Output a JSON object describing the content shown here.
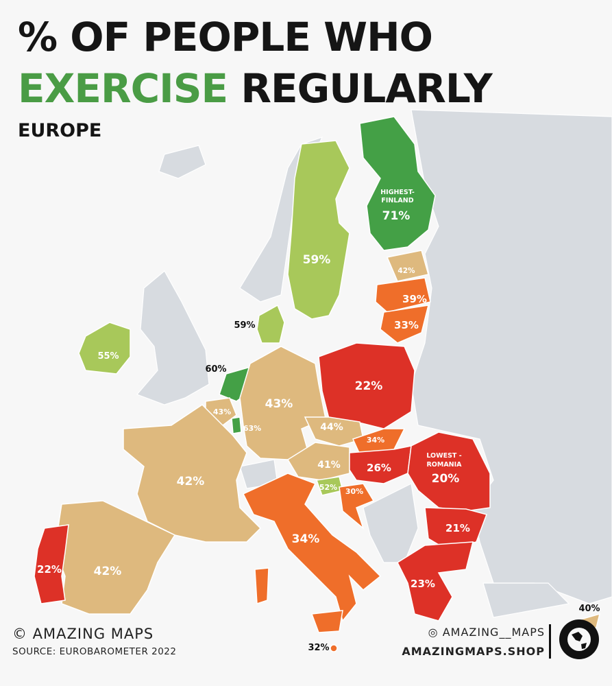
{
  "header": {
    "title_line1": "% OF PEOPLE WHO",
    "title_highlight": "EXERCISE",
    "title_rest": "REGULARLY",
    "subtitle": "EUROPE"
  },
  "labels": {
    "finland_note_1": "HIGHEST-",
    "finland_note_2": "FINLAND",
    "romania_note_1": "LOWEST -",
    "romania_note_2": "ROMANIA"
  },
  "values": {
    "finland": "71%",
    "sweden": "59%",
    "denmark": "59%",
    "ireland": "55%",
    "netherlands": "60%",
    "belgium": "43%",
    "luxembourg": "63%",
    "germany": "43%",
    "france": "42%",
    "spain": "42%",
    "portugal": "22%",
    "poland": "22%",
    "czechia": "44%",
    "slovakia": "34%",
    "austria": "41%",
    "hungary": "26%",
    "slovenia": "52%",
    "croatia": "30%",
    "romania": "20%",
    "bulgaria": "21%",
    "greece": "23%",
    "italy": "34%",
    "malta": "32%",
    "estonia": "42%",
    "latvia": "39%",
    "lithuania": "33%",
    "cyprus": "40%"
  },
  "footer": {
    "credit": "© AMAZING MAPS",
    "source": "SOURCE: EUROBAROMETER 2022",
    "instagram": "◎ AMAZING__MAPS",
    "shop": "AMAZINGMAPS.SHOP"
  },
  "colors": {
    "title_green": "#4a9c45",
    "dark_green": "#44a046",
    "light_green": "#a8c85a",
    "tan": "#deb97e",
    "orange": "#ef6e2a",
    "red": "#dd3127",
    "non_eu_grey": "#d7dbe0"
  }
}
